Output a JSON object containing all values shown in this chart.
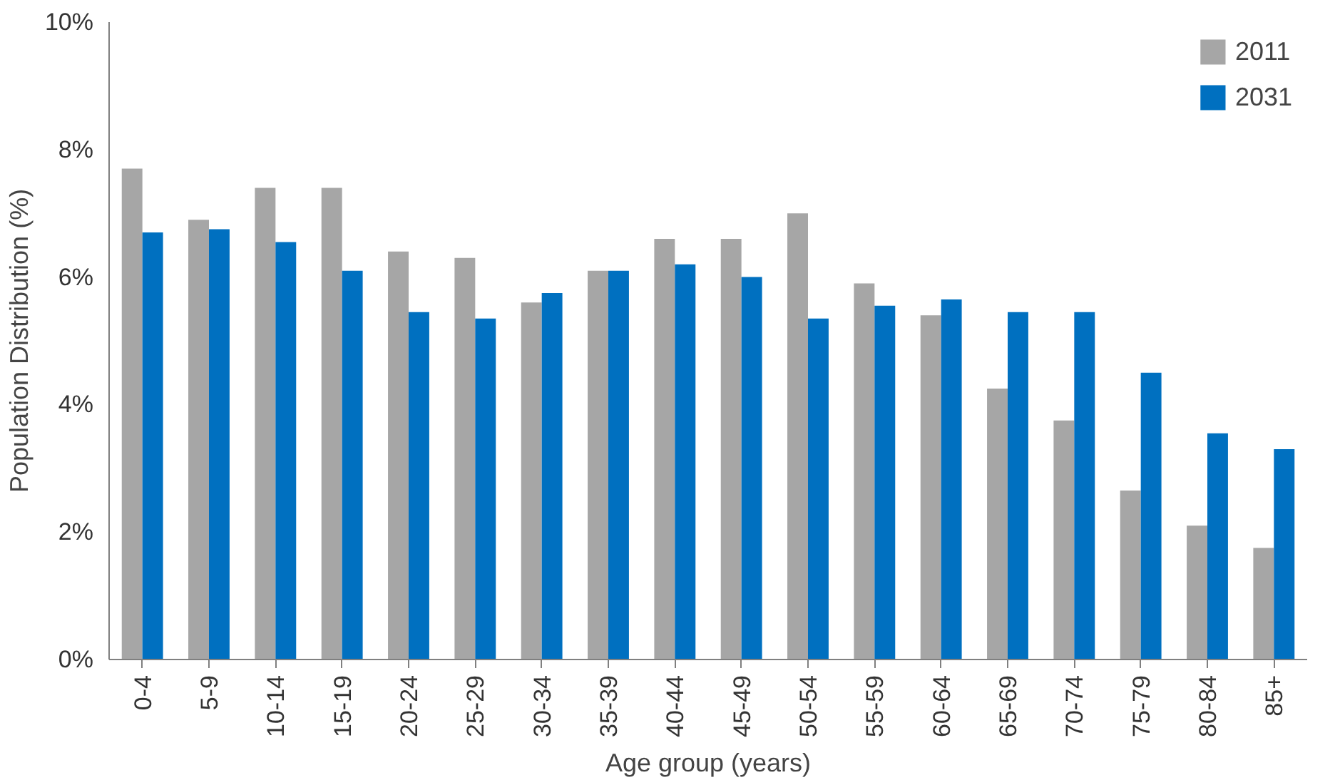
{
  "chart_data": {
    "type": "bar",
    "xlabel": "Age group (years)",
    "ylabel": "Population Distribution (%)",
    "categories": [
      "0-4",
      "5-9",
      "10-14",
      "15-19",
      "20-24",
      "25-29",
      "30-34",
      "35-39",
      "40-44",
      "45-49",
      "50-54",
      "55-59",
      "60-64",
      "65-69",
      "70-74",
      "75-79",
      "80-84",
      "85+"
    ],
    "series": [
      {
        "name": "2011",
        "color": "#a6a6a6",
        "values": [
          7.7,
          6.9,
          7.4,
          7.4,
          6.4,
          6.3,
          5.6,
          6.1,
          6.6,
          6.6,
          7.0,
          5.9,
          5.4,
          4.25,
          3.75,
          2.65,
          2.1,
          1.75
        ]
      },
      {
        "name": "2031",
        "color": "#0070c0",
        "values": [
          6.7,
          6.75,
          6.55,
          6.1,
          5.45,
          5.35,
          5.75,
          6.1,
          6.2,
          6.0,
          5.35,
          5.55,
          5.65,
          5.45,
          5.45,
          4.5,
          3.55,
          3.3
        ]
      }
    ],
    "ylim": [
      0,
      10
    ],
    "yticks": [
      {
        "value": 0,
        "label": "0%"
      },
      {
        "value": 2,
        "label": "2%"
      },
      {
        "value": 4,
        "label": "4%"
      },
      {
        "value": 6,
        "label": "6%"
      },
      {
        "value": 8,
        "label": "8%"
      },
      {
        "value": 10,
        "label": "10%"
      }
    ],
    "grid": false,
    "legend": "top right"
  }
}
